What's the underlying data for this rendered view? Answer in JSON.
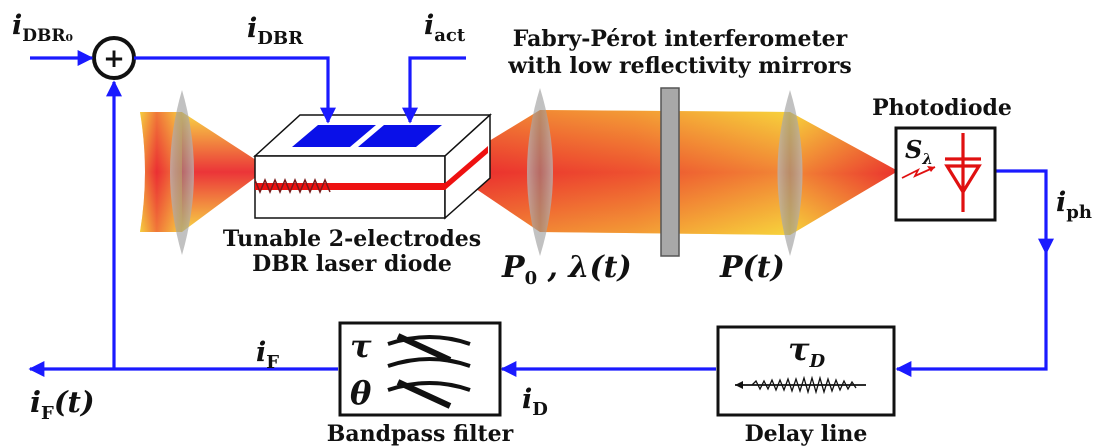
{
  "colors": {
    "signal_wire": "#1a1aff",
    "beam_core": "#e8252d",
    "beam_edge": "#f6d23a",
    "electrode": "#0a10e8",
    "laser_stripe": "#ee1111",
    "lens": "#9a9a9a"
  },
  "labels": {
    "i_dbr0_main": "i",
    "i_dbr0_sub": "DBR₀",
    "summing_symbol": "+",
    "i_dbr_main": "i",
    "i_dbr_sub": "DBR",
    "i_act_main": "i",
    "i_act_sub": "act",
    "fp_line1": "Fabry-Pérot interferometer",
    "fp_line2": "with low reflectivity mirrors",
    "photodiode": "Photodiode",
    "s_lambda_main": "S",
    "s_lambda_sub": "λ",
    "i_ph_main": "i",
    "i_ph_sub": "ph",
    "laser_line1": "Tunable 2-electrodes",
    "laser_line2": "DBR laser diode",
    "p0_main": "P",
    "p0_sub": "0",
    "p0_rest": " , λ(t)",
    "p_t": "P(t)",
    "i_f_main": "i",
    "i_f_sub": "F",
    "i_f_t_main": "i",
    "i_f_t_sub": "F",
    "i_f_t_rest": "(t)",
    "tau": "τ",
    "theta": "θ",
    "bandpass": "Bandpass filter",
    "i_d_main": "i",
    "i_d_sub": "D",
    "tau_d_main": "τ",
    "tau_d_sub": "D",
    "delay": "Delay line"
  }
}
